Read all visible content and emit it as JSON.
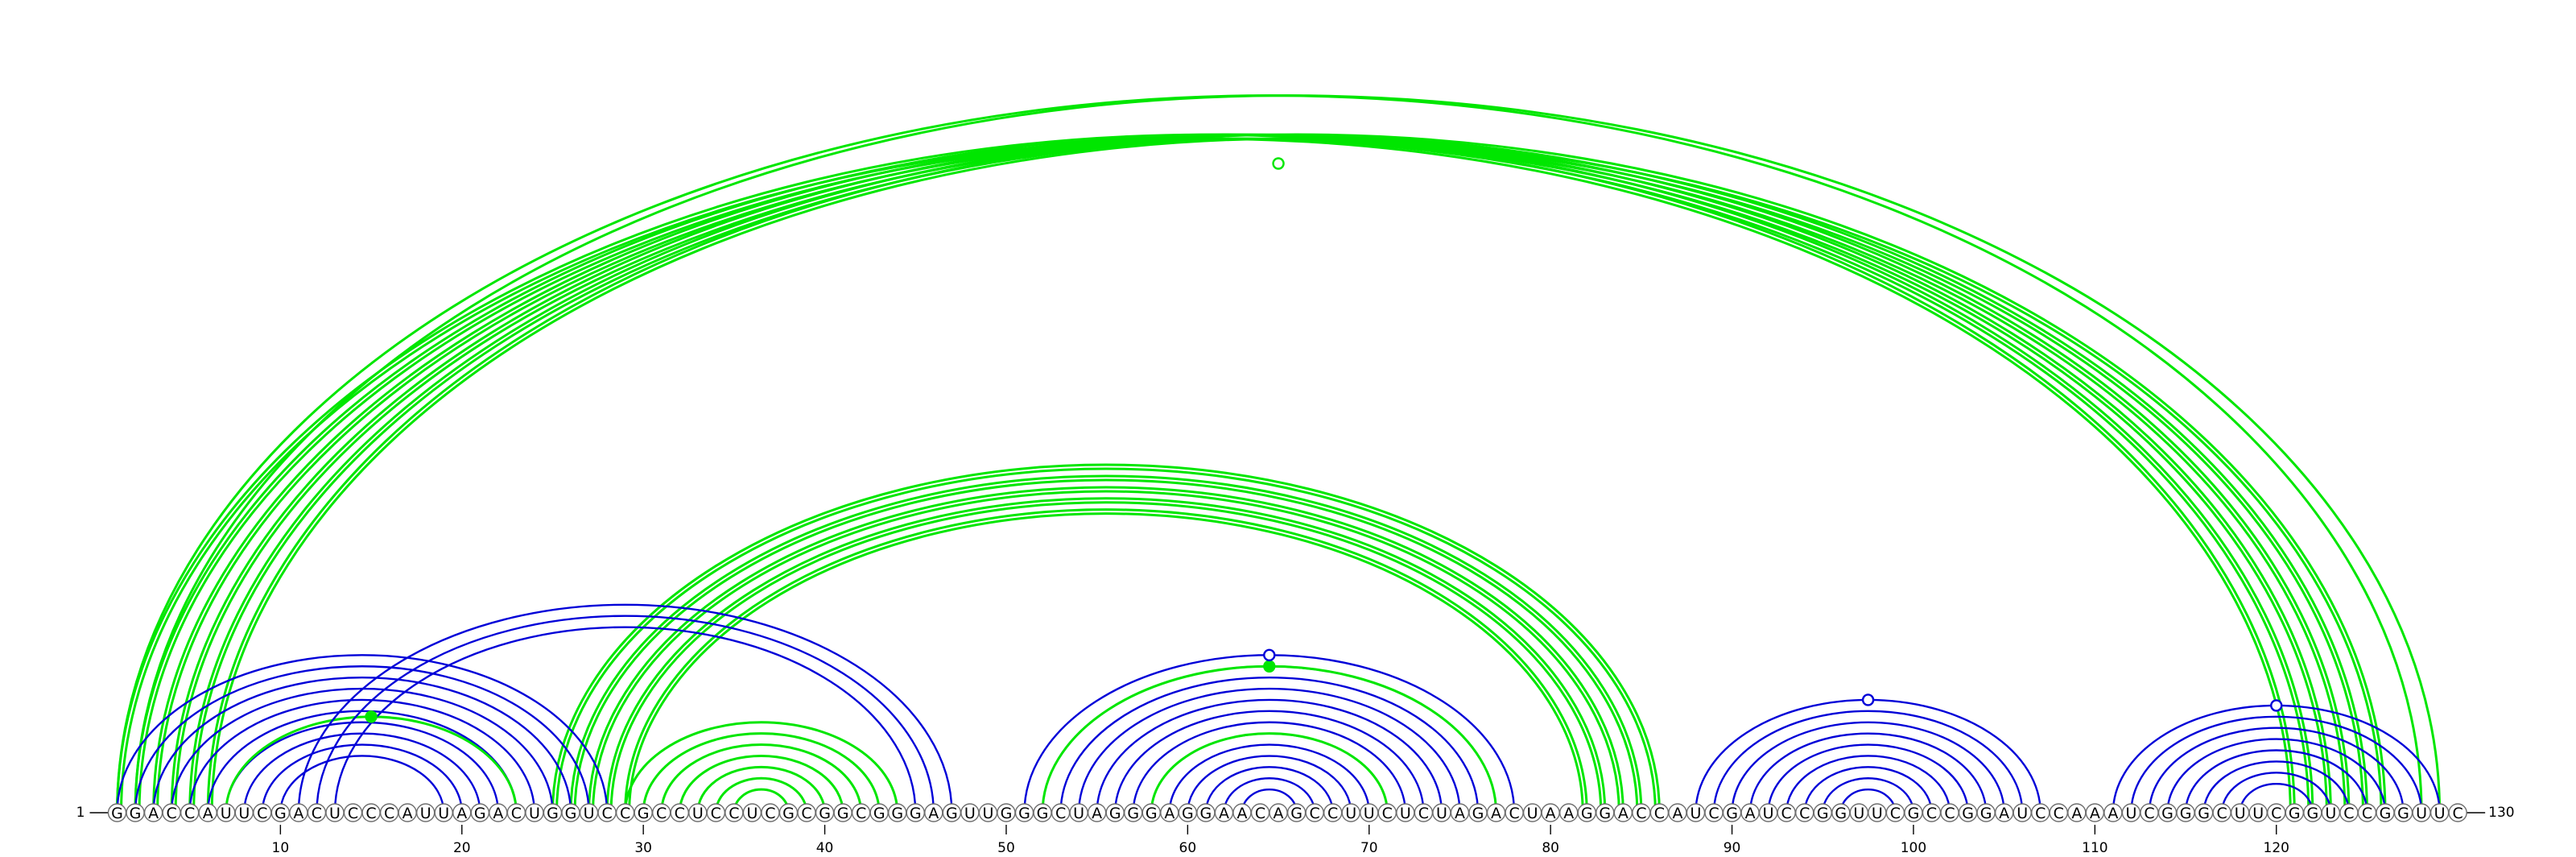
{
  "sequence": "GGACCAUUCGACUCCCAUUAGACUGGUCCGCCUCCUCGCGGCGGGAGUUGGGCUAGGGAGGAACAGCCUUCUCUAGACUAAGGACCAUCGAUCCGGUUCGCCGGAUCCAAAUCGGGCUUCGGUCCGGUUC",
  "start_label": "1",
  "end_label": "130",
  "ticks": [
    10,
    20,
    30,
    40,
    50,
    60,
    70,
    80,
    90,
    100,
    110,
    120
  ],
  "colors": {
    "green": "#00e600",
    "blue": "#0000d8"
  },
  "arc_groups": [
    {
      "color": "green",
      "pairs": [
        [
          1,
          121
        ],
        [
          2,
          122
        ],
        [
          3,
          123
        ],
        [
          4,
          124
        ],
        [
          5,
          125
        ],
        [
          6,
          126
        ]
      ]
    },
    {
      "color": "green",
      "pairs": [
        [
          1,
          128
        ],
        [
          2,
          129
        ]
      ]
    },
    {
      "color": "green",
      "pairs": [
        [
          25,
          86
        ],
        [
          26,
          85
        ],
        [
          27,
          84
        ],
        [
          28,
          83
        ],
        [
          29,
          82
        ]
      ]
    },
    {
      "color": "blue",
      "pairs": [
        [
          1,
          28
        ],
        [
          2,
          27
        ],
        [
          3,
          26
        ],
        [
          4,
          25
        ],
        [
          5,
          24
        ],
        [
          6,
          23
        ],
        [
          7,
          22
        ],
        [
          8,
          21
        ],
        [
          9,
          20
        ],
        [
          10,
          19
        ]
      ]
    },
    {
      "color": "green",
      "pairs": [
        [
          7,
          23
        ]
      ]
    },
    {
      "color": "blue",
      "pairs": [
        [
          11,
          47
        ],
        [
          12,
          46
        ],
        [
          13,
          45
        ]
      ]
    },
    {
      "color": "green",
      "pairs": [
        [
          29,
          44
        ],
        [
          30,
          43
        ],
        [
          31,
          42
        ],
        [
          32,
          41
        ],
        [
          33,
          40
        ],
        [
          34,
          39
        ],
        [
          35,
          38
        ]
      ]
    },
    {
      "color": "blue",
      "pairs": [
        [
          51,
          78
        ],
        [
          52,
          77
        ],
        [
          53,
          76
        ],
        [
          54,
          75
        ],
        [
          55,
          74
        ],
        [
          56,
          73
        ],
        [
          57,
          72
        ],
        [
          58,
          71
        ],
        [
          59,
          70
        ],
        [
          60,
          69
        ],
        [
          61,
          68
        ],
        [
          62,
          67
        ],
        [
          63,
          66
        ]
      ]
    },
    {
      "color": "green",
      "pairs": [
        [
          52,
          77
        ],
        [
          58,
          71
        ]
      ]
    },
    {
      "color": "blue",
      "pairs": [
        [
          88,
          107
        ],
        [
          89,
          106
        ],
        [
          90,
          105
        ],
        [
          91,
          104
        ],
        [
          92,
          103
        ],
        [
          93,
          102
        ],
        [
          94,
          101
        ],
        [
          95,
          100
        ],
        [
          96,
          99
        ]
      ]
    },
    {
      "color": "blue",
      "pairs": [
        [
          111,
          129
        ],
        [
          112,
          128
        ],
        [
          113,
          127
        ],
        [
          114,
          126
        ],
        [
          115,
          125
        ],
        [
          116,
          124
        ],
        [
          117,
          123
        ],
        [
          118,
          122
        ]
      ]
    }
  ],
  "markers": [
    {
      "pos": 65,
      "color": "green",
      "filled": false,
      "group": 0
    },
    {
      "pos": 15,
      "color": "green",
      "filled": true,
      "group": 4
    },
    {
      "pos": 64.5,
      "color": "green",
      "filled": true,
      "group": 8
    },
    {
      "pos": 64.5,
      "color": "blue",
      "filled": false,
      "group": 7
    },
    {
      "pos": 120,
      "color": "blue",
      "filled": false,
      "group": 10
    },
    {
      "pos": 97.5,
      "color": "blue",
      "filled": false,
      "group": 9
    }
  ]
}
